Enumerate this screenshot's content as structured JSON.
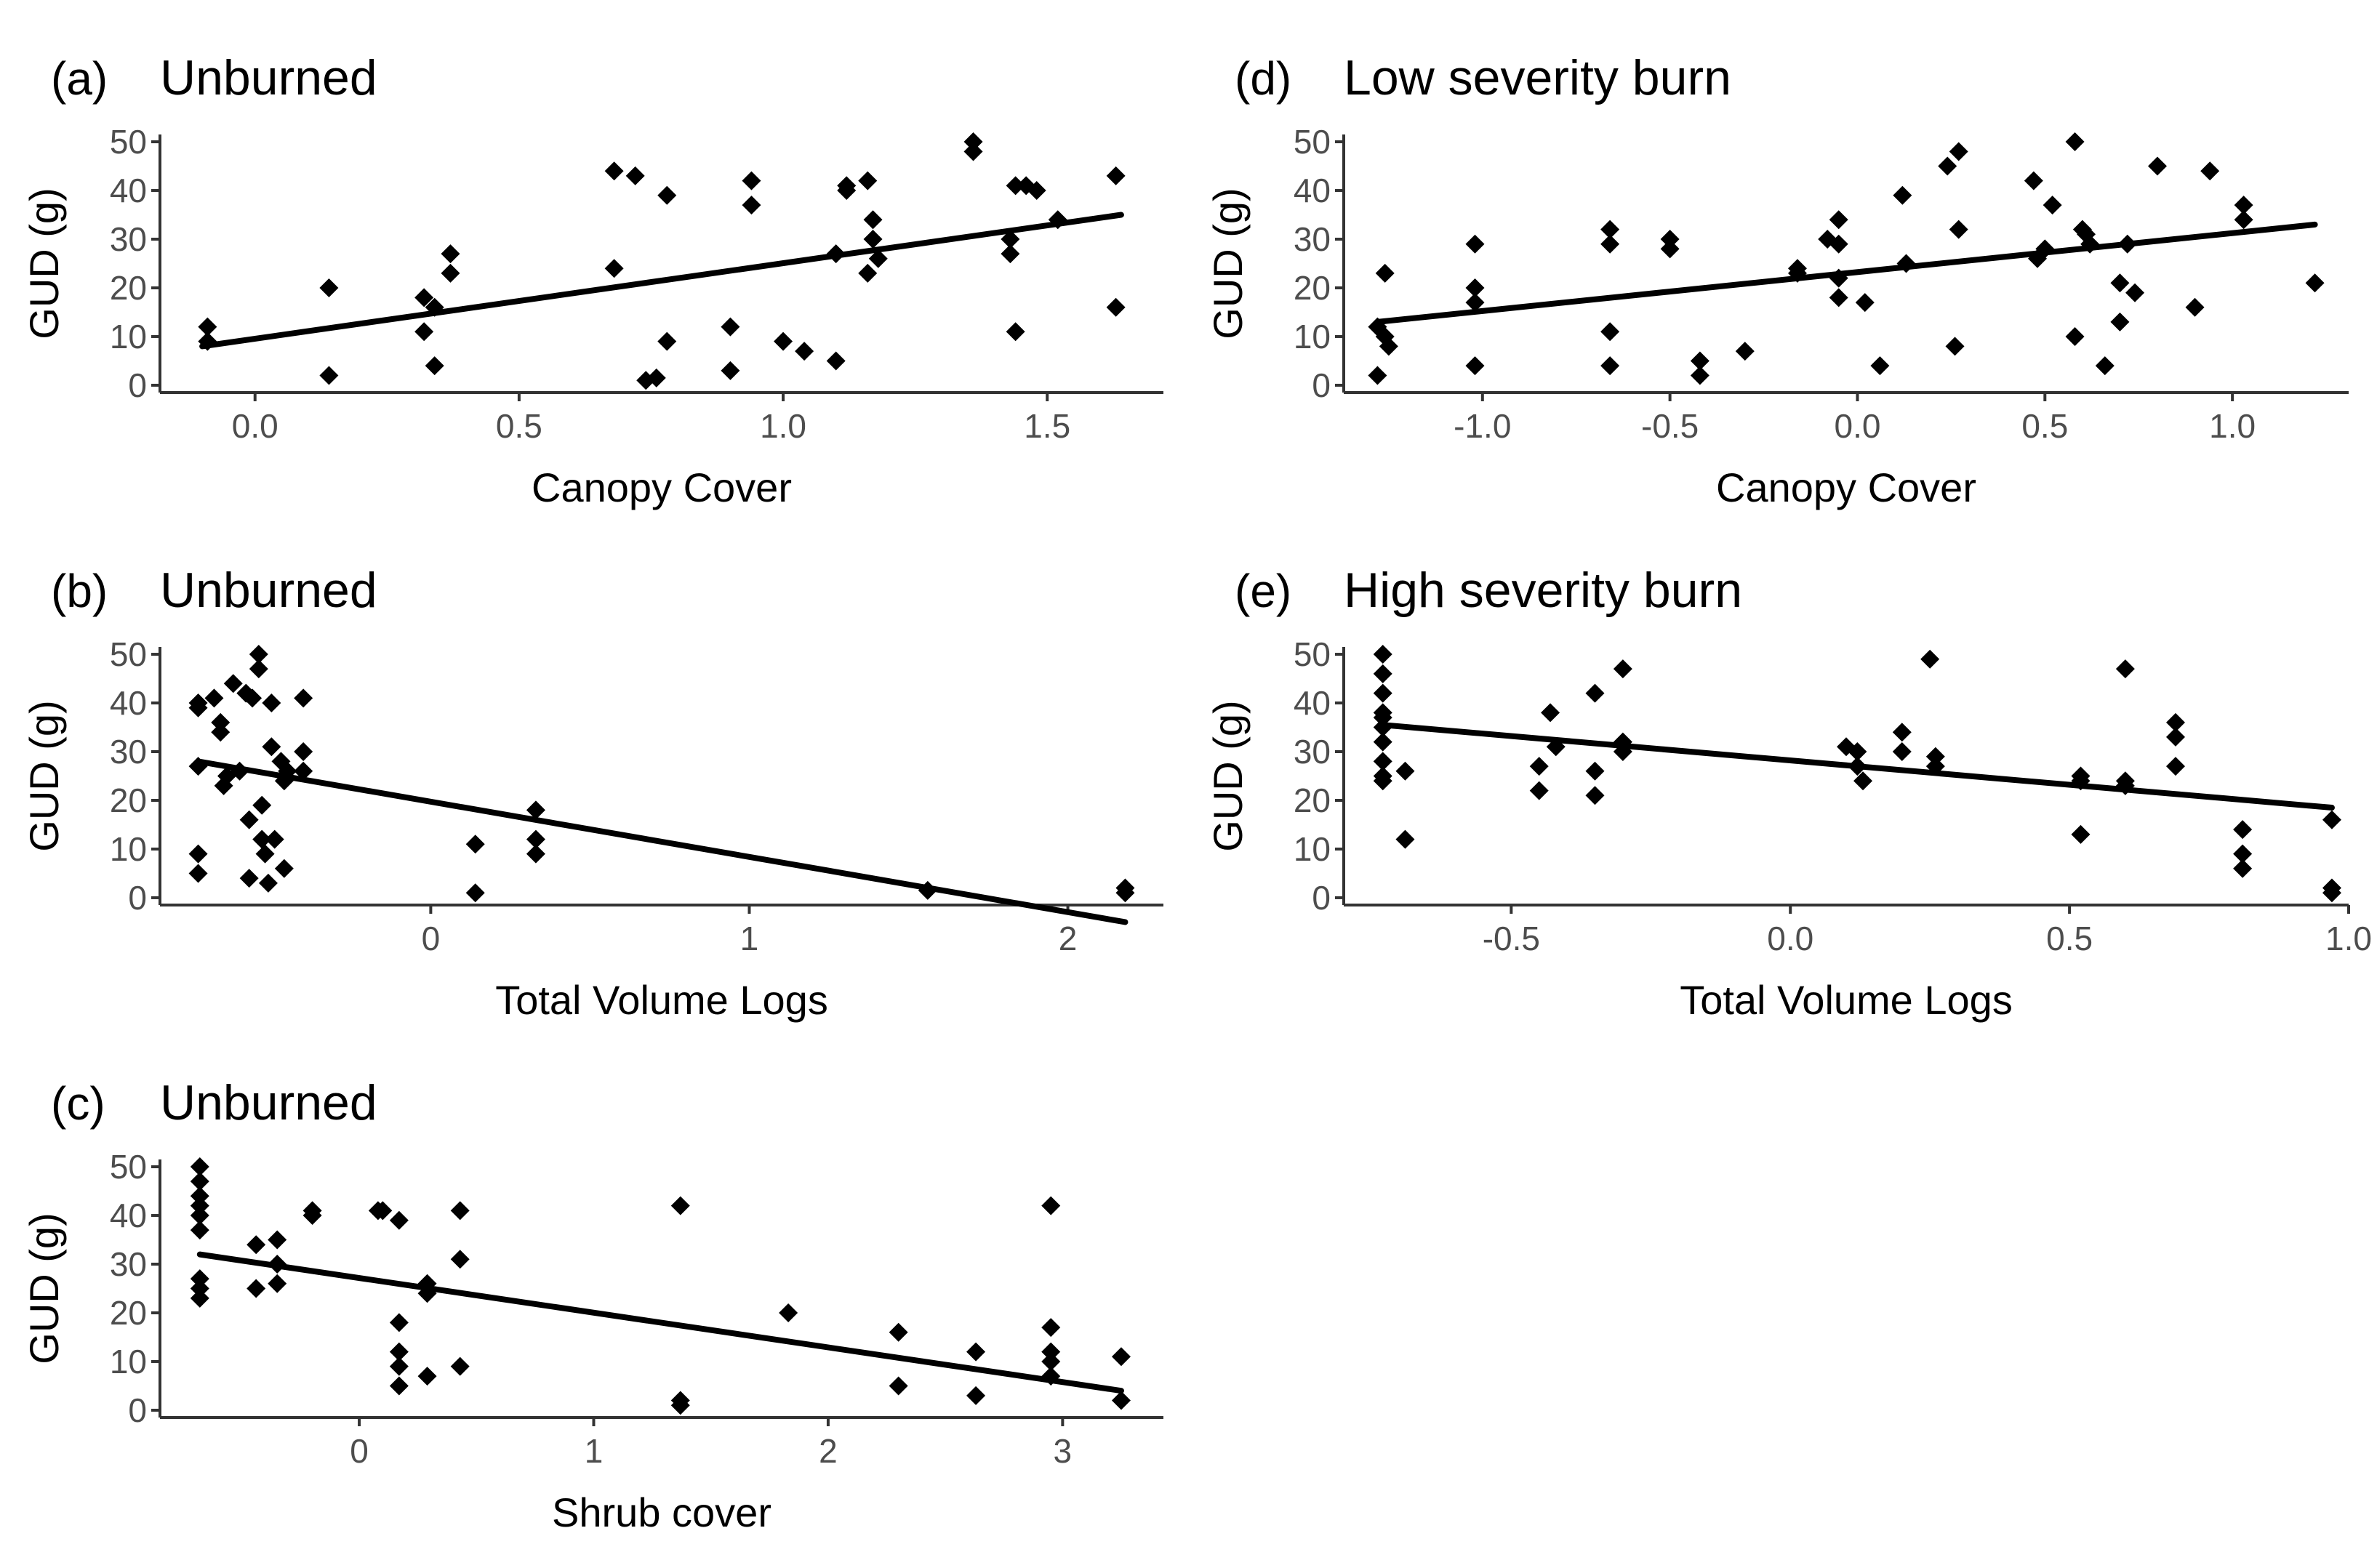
{
  "colors": {
    "point": "#000000",
    "line": "#000000",
    "axis": "#333333",
    "tick_text": "#4d4d4d",
    "background": "#ffffff"
  },
  "chart_data": [
    {
      "panel": "(a)",
      "title": "Unburned",
      "type": "scatter",
      "xlabel": "Canopy Cover",
      "ylabel": "GUD (g)",
      "xlim": [
        -0.18,
        1.72
      ],
      "ylim": [
        -1.5,
        51.5
      ],
      "xticks": [
        0.0,
        0.5,
        1.0,
        1.5
      ],
      "xtick_labels": [
        "0.0",
        "0.5",
        "1.0",
        "1.5"
      ],
      "yticks": [
        0,
        10,
        20,
        30,
        40,
        50
      ],
      "ytick_labels": [
        "0",
        "10",
        "20",
        "30",
        "40",
        "50"
      ],
      "grid": false,
      "points": [
        [
          -0.09,
          12
        ],
        [
          -0.09,
          9
        ],
        [
          0.14,
          20
        ],
        [
          0.14,
          2
        ],
        [
          0.32,
          18
        ],
        [
          0.32,
          11
        ],
        [
          0.34,
          16
        ],
        [
          0.34,
          4
        ],
        [
          0.37,
          27
        ],
        [
          0.37,
          23
        ],
        [
          0.68,
          44
        ],
        [
          0.68,
          24
        ],
        [
          0.72,
          43
        ],
        [
          0.74,
          1
        ],
        [
          0.76,
          1.5
        ],
        [
          0.78,
          39
        ],
        [
          0.78,
          9
        ],
        [
          0.9,
          12
        ],
        [
          0.9,
          3
        ],
        [
          0.94,
          42
        ],
        [
          0.94,
          37
        ],
        [
          1.0,
          9
        ],
        [
          1.04,
          7
        ],
        [
          1.1,
          5
        ],
        [
          1.1,
          27
        ],
        [
          1.12,
          41
        ],
        [
          1.12,
          40
        ],
        [
          1.16,
          42
        ],
        [
          1.16,
          23
        ],
        [
          1.17,
          34
        ],
        [
          1.17,
          30
        ],
        [
          1.18,
          26
        ],
        [
          1.36,
          50
        ],
        [
          1.36,
          48
        ],
        [
          1.43,
          27
        ],
        [
          1.43,
          30
        ],
        [
          1.44,
          41
        ],
        [
          1.44,
          11
        ],
        [
          1.46,
          41
        ],
        [
          1.48,
          40
        ],
        [
          1.52,
          34
        ],
        [
          1.63,
          43
        ],
        [
          1.63,
          16
        ]
      ],
      "trend": {
        "x": [
          -0.1,
          1.64
        ],
        "y": [
          8,
          35
        ]
      }
    },
    {
      "panel": "(b)",
      "title": "Unburned",
      "type": "scatter",
      "xlabel": "Total Volume Logs",
      "ylabel": "GUD (g)",
      "xlim": [
        -0.85,
        2.3
      ],
      "ylim": [
        -1.5,
        51.5
      ],
      "xticks": [
        0,
        1,
        2
      ],
      "xtick_labels": [
        "0",
        "1",
        "2"
      ],
      "yticks": [
        0,
        10,
        20,
        30,
        40,
        50
      ],
      "ytick_labels": [
        "0",
        "10",
        "20",
        "30",
        "40",
        "50"
      ],
      "grid": false,
      "points": [
        [
          -0.73,
          40
        ],
        [
          -0.73,
          39
        ],
        [
          -0.73,
          27
        ],
        [
          -0.73,
          9
        ],
        [
          -0.73,
          5
        ],
        [
          -0.68,
          41
        ],
        [
          -0.66,
          36
        ],
        [
          -0.66,
          34
        ],
        [
          -0.65,
          23
        ],
        [
          -0.64,
          25
        ],
        [
          -0.62,
          44
        ],
        [
          -0.6,
          26
        ],
        [
          -0.58,
          42
        ],
        [
          -0.56,
          41
        ],
        [
          -0.57,
          16
        ],
        [
          -0.57,
          4
        ],
        [
          -0.54,
          50
        ],
        [
          -0.54,
          47
        ],
        [
          -0.53,
          19
        ],
        [
          -0.53,
          12
        ],
        [
          -0.52,
          9
        ],
        [
          -0.51,
          3
        ],
        [
          -0.5,
          40
        ],
        [
          -0.5,
          31
        ],
        [
          -0.49,
          12
        ],
        [
          -0.47,
          28
        ],
        [
          -0.46,
          24
        ],
        [
          -0.46,
          6
        ],
        [
          -0.45,
          26
        ],
        [
          -0.4,
          41
        ],
        [
          -0.4,
          30
        ],
        [
          -0.4,
          26
        ],
        [
          0.14,
          11
        ],
        [
          0.14,
          1
        ],
        [
          0.33,
          18
        ],
        [
          0.33,
          12
        ],
        [
          0.33,
          9
        ],
        [
          1.56,
          1.5
        ],
        [
          2.18,
          2
        ],
        [
          2.18,
          1
        ]
      ],
      "trend": {
        "x": [
          -0.73,
          2.18
        ],
        "y": [
          28,
          -5
        ]
      }
    },
    {
      "panel": "(c)",
      "title": "Unburned",
      "type": "scatter",
      "xlabel": "Shrub cover",
      "ylabel": "GUD (g)",
      "xlim": [
        -0.85,
        3.43
      ],
      "ylim": [
        -1.5,
        51.5
      ],
      "xticks": [
        0,
        1,
        2,
        3
      ],
      "xtick_labels": [
        "0",
        "1",
        "2",
        "3"
      ],
      "yticks": [
        0,
        10,
        20,
        30,
        40,
        50
      ],
      "ytick_labels": [
        "0",
        "10",
        "20",
        "30",
        "40",
        "50"
      ],
      "grid": false,
      "points": [
        [
          -0.68,
          50
        ],
        [
          -0.68,
          47
        ],
        [
          -0.68,
          44
        ],
        [
          -0.68,
          42
        ],
        [
          -0.68,
          40
        ],
        [
          -0.68,
          37
        ],
        [
          -0.68,
          27
        ],
        [
          -0.68,
          25
        ],
        [
          -0.68,
          23
        ],
        [
          -0.44,
          34
        ],
        [
          -0.44,
          25
        ],
        [
          -0.35,
          35
        ],
        [
          -0.35,
          30
        ],
        [
          -0.35,
          26
        ],
        [
          -0.2,
          41
        ],
        [
          -0.2,
          40
        ],
        [
          0.08,
          41
        ],
        [
          0.1,
          41
        ],
        [
          0.17,
          39
        ],
        [
          0.17,
          18
        ],
        [
          0.17,
          12
        ],
        [
          0.17,
          9
        ],
        [
          0.17,
          5
        ],
        [
          0.29,
          26
        ],
        [
          0.29,
          24
        ],
        [
          0.29,
          7
        ],
        [
          0.43,
          41
        ],
        [
          0.43,
          31
        ],
        [
          0.43,
          9
        ],
        [
          1.37,
          42
        ],
        [
          1.37,
          2
        ],
        [
          1.37,
          1
        ],
        [
          1.83,
          20
        ],
        [
          2.3,
          16
        ],
        [
          2.3,
          5
        ],
        [
          2.63,
          12
        ],
        [
          2.63,
          3
        ],
        [
          2.95,
          42
        ],
        [
          2.95,
          17
        ],
        [
          2.95,
          12
        ],
        [
          2.95,
          10
        ],
        [
          2.95,
          7
        ],
        [
          3.25,
          11
        ],
        [
          3.25,
          2
        ]
      ],
      "trend": {
        "x": [
          -0.68,
          3.25
        ],
        "y": [
          32,
          4
        ]
      }
    },
    {
      "panel": "(d)",
      "title": "Low severity burn",
      "type": "scatter",
      "xlabel": "Canopy Cover",
      "ylabel": "GUD (g)",
      "xlim": [
        -1.37,
        1.31
      ],
      "ylim": [
        -1.5,
        51.5
      ],
      "xticks": [
        -1.0,
        -0.5,
        0.0,
        0.5,
        1.0
      ],
      "xtick_labels": [
        "-1.0",
        "-0.5",
        "0.0",
        "0.5",
        "1.0"
      ],
      "yticks": [
        0,
        10,
        20,
        30,
        40,
        50
      ],
      "ytick_labels": [
        "0",
        "10",
        "20",
        "30",
        "40",
        "50"
      ],
      "grid": false,
      "points": [
        [
          -1.28,
          12
        ],
        [
          -1.28,
          2
        ],
        [
          -1.26,
          23
        ],
        [
          -1.26,
          10
        ],
        [
          -1.25,
          8
        ],
        [
          -1.02,
          29
        ],
        [
          -1.02,
          20
        ],
        [
          -1.02,
          17
        ],
        [
          -1.02,
          4
        ],
        [
          -0.66,
          32
        ],
        [
          -0.66,
          29
        ],
        [
          -0.66,
          11
        ],
        [
          -0.66,
          4
        ],
        [
          -0.5,
          30
        ],
        [
          -0.5,
          28
        ],
        [
          -0.42,
          5
        ],
        [
          -0.42,
          2
        ],
        [
          -0.3,
          7
        ],
        [
          -0.16,
          24
        ],
        [
          -0.16,
          23
        ],
        [
          -0.08,
          30
        ],
        [
          -0.05,
          34
        ],
        [
          -0.05,
          29
        ],
        [
          -0.05,
          22
        ],
        [
          -0.05,
          18
        ],
        [
          0.02,
          17
        ],
        [
          0.06,
          4
        ],
        [
          0.12,
          39
        ],
        [
          0.13,
          25
        ],
        [
          0.24,
          45
        ],
        [
          0.26,
          8
        ],
        [
          0.27,
          48
        ],
        [
          0.27,
          32
        ],
        [
          0.47,
          42
        ],
        [
          0.48,
          26
        ],
        [
          0.5,
          28
        ],
        [
          0.52,
          37
        ],
        [
          0.58,
          50
        ],
        [
          0.58,
          10
        ],
        [
          0.6,
          32
        ],
        [
          0.61,
          31
        ],
        [
          0.62,
          29
        ],
        [
          0.66,
          4
        ],
        [
          0.7,
          21
        ],
        [
          0.7,
          13
        ],
        [
          0.72,
          29
        ],
        [
          0.74,
          19
        ],
        [
          0.8,
          45
        ],
        [
          0.9,
          16
        ],
        [
          0.94,
          44
        ],
        [
          1.03,
          37
        ],
        [
          1.03,
          34
        ],
        [
          1.22,
          21
        ]
      ],
      "trend": {
        "x": [
          -1.28,
          1.22
        ],
        "y": [
          13,
          33
        ]
      }
    },
    {
      "panel": "(e)",
      "title": "High severity burn",
      "type": "scatter",
      "xlabel": "Total Volume Logs",
      "ylabel": "GUD (g)",
      "xlim": [
        -0.8,
        1.0
      ],
      "ylim": [
        -1.5,
        51.5
      ],
      "xticks": [
        -0.5,
        0.0,
        0.5,
        1.0
      ],
      "xtick_labels": [
        "-0.5",
        "0.0",
        "0.5",
        "1.0"
      ],
      "yticks": [
        0,
        10,
        20,
        30,
        40,
        50
      ],
      "ytick_labels": [
        "0",
        "10",
        "20",
        "30",
        "40",
        "50"
      ],
      "grid": false,
      "points": [
        [
          -0.73,
          50
        ],
        [
          -0.73,
          46
        ],
        [
          -0.73,
          42
        ],
        [
          -0.73,
          38
        ],
        [
          -0.73,
          37
        ],
        [
          -0.73,
          35
        ],
        [
          -0.73,
          32
        ],
        [
          -0.73,
          28
        ],
        [
          -0.73,
          25
        ],
        [
          -0.73,
          24
        ],
        [
          -0.69,
          26
        ],
        [
          -0.69,
          12
        ],
        [
          -0.45,
          27
        ],
        [
          -0.45,
          22
        ],
        [
          -0.43,
          38
        ],
        [
          -0.42,
          31
        ],
        [
          -0.35,
          42
        ],
        [
          -0.35,
          26
        ],
        [
          -0.35,
          21
        ],
        [
          -0.3,
          47
        ],
        [
          -0.3,
          32
        ],
        [
          -0.3,
          30
        ],
        [
          0.1,
          31
        ],
        [
          0.12,
          30
        ],
        [
          0.12,
          27
        ],
        [
          0.13,
          24
        ],
        [
          0.2,
          34
        ],
        [
          0.2,
          30
        ],
        [
          0.25,
          49
        ],
        [
          0.26,
          29
        ],
        [
          0.26,
          27
        ],
        [
          0.52,
          25
        ],
        [
          0.52,
          24
        ],
        [
          0.52,
          13
        ],
        [
          0.6,
          47
        ],
        [
          0.6,
          24
        ],
        [
          0.6,
          23
        ],
        [
          0.69,
          36
        ],
        [
          0.69,
          33
        ],
        [
          0.69,
          27
        ],
        [
          0.81,
          14
        ],
        [
          0.81,
          9
        ],
        [
          0.81,
          6
        ],
        [
          0.97,
          16
        ],
        [
          0.97,
          2
        ],
        [
          0.97,
          1
        ]
      ],
      "trend": {
        "x": [
          -0.73,
          0.97
        ],
        "y": [
          35.5,
          18.5
        ]
      }
    }
  ]
}
